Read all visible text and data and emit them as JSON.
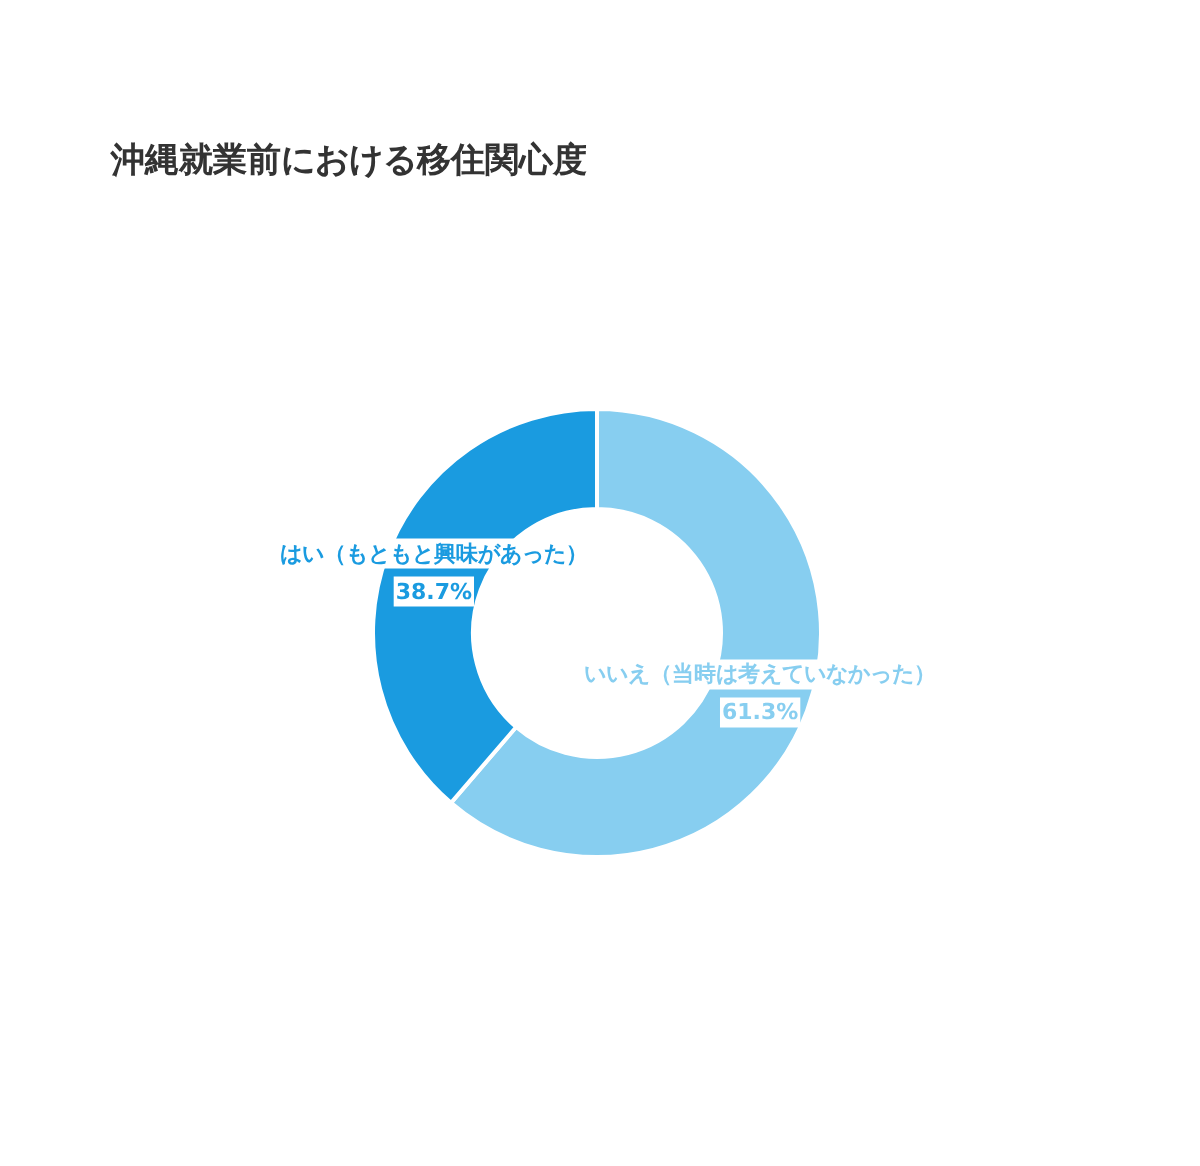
{
  "chart_data": {
    "type": "donut",
    "title": "沖縄就業前における移住関心度",
    "categories": [
      "いいえ（当時は考えていなかった）",
      "はい（もともと興味があった）"
    ],
    "values": [
      61.3,
      38.7
    ],
    "colors": [
      "#87cef0",
      "#1a9be0"
    ],
    "value_labels": [
      "61.3%",
      "38.7%"
    ]
  }
}
